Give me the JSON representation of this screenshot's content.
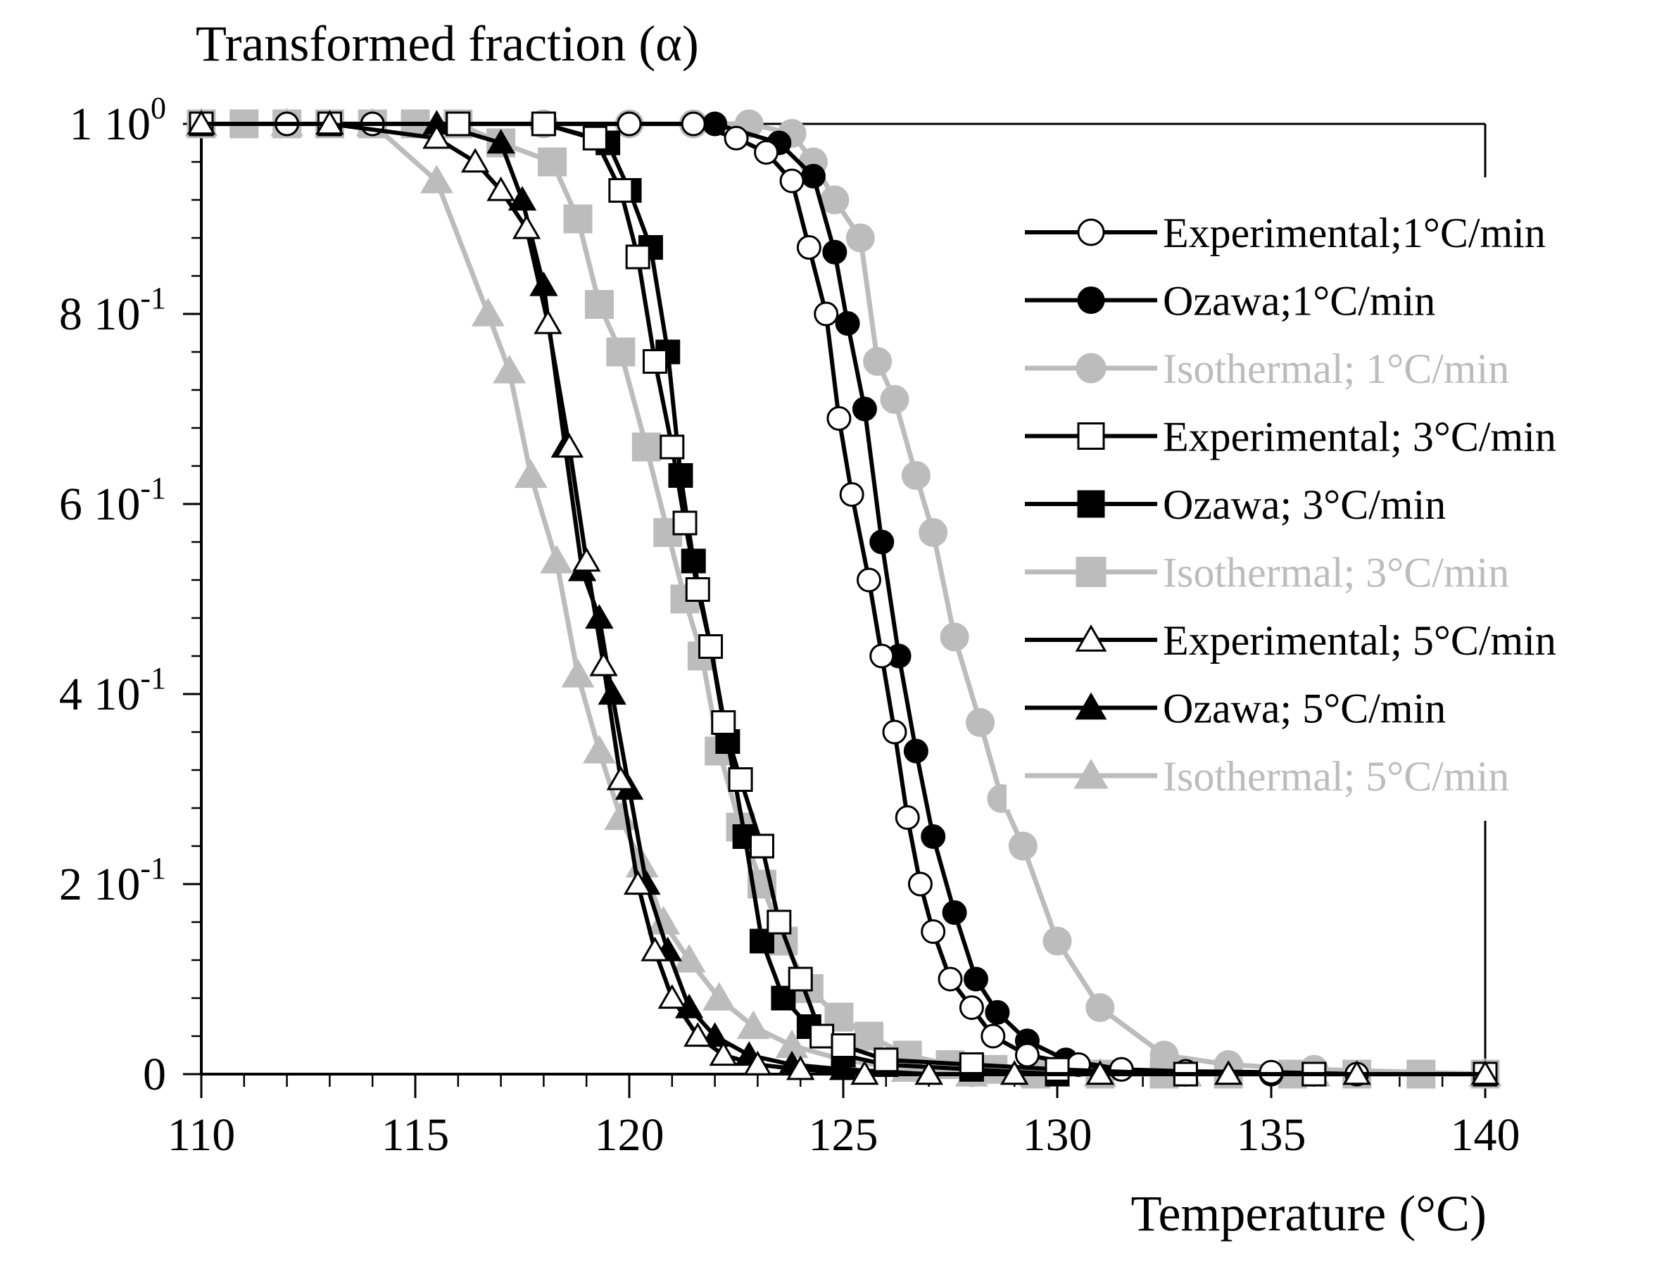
{
  "chart_data": {
    "type": "line",
    "ylabel": "Transformed fraction (α)",
    "xlabel": "Temperature (°C)",
    "xlim": [
      110,
      140
    ],
    "ylim": [
      0,
      1
    ],
    "x_ticks": [
      110,
      115,
      120,
      125,
      130,
      135,
      140
    ],
    "x_tick_labels": [
      "110",
      "115",
      "120",
      "125",
      "130",
      "135",
      "140"
    ],
    "y_ticks": [
      0,
      0.2,
      0.4,
      0.6,
      0.8,
      1.0
    ],
    "y_tick_labels": [
      {
        "main": "0",
        "exp": ""
      },
      {
        "main": "2 10",
        "exp": "-1"
      },
      {
        "main": "4 10",
        "exp": "-1"
      },
      {
        "main": "6 10",
        "exp": "-1"
      },
      {
        "main": "8 10",
        "exp": "-1"
      },
      {
        "main": "1 10",
        "exp": "0"
      }
    ],
    "grid": false,
    "legend_position": "right",
    "series": [
      {
        "name": "Experimental;1°C/min",
        "color": "#000000",
        "marker": "circle-open",
        "x": [
          110,
          112,
          114,
          116,
          118,
          120,
          121.5,
          122.5,
          123.2,
          123.8,
          124.2,
          124.6,
          124.9,
          125.2,
          125.6,
          125.9,
          126.2,
          126.5,
          126.8,
          127.1,
          127.5,
          128.0,
          128.5,
          129.3,
          130.5,
          131.5,
          133,
          135,
          137,
          140
        ],
        "y": [
          1.0,
          1.0,
          1.0,
          1.0,
          1.0,
          1.0,
          1.0,
          0.985,
          0.97,
          0.94,
          0.87,
          0.8,
          0.69,
          0.61,
          0.52,
          0.44,
          0.36,
          0.27,
          0.2,
          0.15,
          0.1,
          0.07,
          0.04,
          0.02,
          0.01,
          0.005,
          0.003,
          0.002,
          0.0,
          0.0
        ]
      },
      {
        "name": "Ozawa;1°C/min",
        "color": "#000000",
        "marker": "circle-filled",
        "x": [
          110,
          112,
          114,
          116,
          118,
          120,
          122,
          123.5,
          124.3,
          124.8,
          125.1,
          125.5,
          125.9,
          126.3,
          126.7,
          127.1,
          127.6,
          128.1,
          128.6,
          129.3,
          130.2,
          131.5,
          133,
          135,
          140
        ],
        "y": [
          1.0,
          1.0,
          1.0,
          1.0,
          1.0,
          1.0,
          1.0,
          0.98,
          0.945,
          0.865,
          0.79,
          0.7,
          0.56,
          0.44,
          0.34,
          0.25,
          0.17,
          0.1,
          0.065,
          0.035,
          0.015,
          0.005,
          0.002,
          0.0,
          0.0
        ]
      },
      {
        "name": "Isothermal; 1°C/min",
        "color": "#bcbcbc",
        "marker": "circle-filled",
        "x": [
          110,
          112,
          114,
          116,
          118,
          120,
          121.5,
          122.8,
          123.8,
          124.3,
          124.8,
          125.4,
          125.8,
          126.2,
          126.7,
          127.1,
          127.6,
          128.2,
          128.7,
          129.2,
          130,
          131,
          132.5,
          134,
          136,
          140
        ],
        "y": [
          1.0,
          1.0,
          1.0,
          1.0,
          1.0,
          1.0,
          1.0,
          1.0,
          0.99,
          0.96,
          0.92,
          0.88,
          0.75,
          0.71,
          0.63,
          0.57,
          0.46,
          0.37,
          0.29,
          0.24,
          0.14,
          0.07,
          0.02,
          0.01,
          0.005,
          0.0
        ]
      },
      {
        "name": "Experimental; 3°C/min",
        "color": "#000000",
        "marker": "square-open",
        "x": [
          110,
          113,
          116,
          118,
          119.2,
          119.8,
          120.2,
          120.6,
          121.0,
          121.3,
          121.6,
          121.9,
          122.2,
          122.6,
          123.1,
          123.5,
          124.0,
          124.5,
          125.0,
          126,
          128,
          130,
          133,
          136,
          140
        ],
        "y": [
          1.0,
          1.0,
          1.0,
          1.0,
          0.985,
          0.93,
          0.86,
          0.75,
          0.66,
          0.58,
          0.51,
          0.45,
          0.37,
          0.31,
          0.24,
          0.16,
          0.1,
          0.04,
          0.03,
          0.015,
          0.01,
          0.005,
          0.0,
          0.0,
          0.0
        ]
      },
      {
        "name": "Ozawa; 3°C/min",
        "color": "#000000",
        "marker": "square-filled",
        "x": [
          110,
          113,
          116,
          118,
          119.5,
          120.0,
          120.5,
          120.9,
          121.2,
          121.5,
          121.9,
          122.3,
          122.7,
          123.1,
          123.6,
          124.2,
          125,
          126,
          128,
          130,
          133,
          136,
          140
        ],
        "y": [
          1.0,
          1.0,
          1.0,
          1.0,
          0.98,
          0.93,
          0.87,
          0.76,
          0.63,
          0.54,
          0.45,
          0.35,
          0.25,
          0.14,
          0.08,
          0.05,
          0.02,
          0.01,
          0.005,
          0.0,
          0.0,
          0.0,
          0.0
        ]
      },
      {
        "name": "Isothermal; 3°C/min",
        "color": "#bcbcbc",
        "marker": "square-filled",
        "x": [
          110,
          111,
          112,
          113,
          114,
          115,
          116,
          117,
          118.2,
          118.8,
          119.3,
          119.8,
          120.4,
          120.9,
          121.3,
          121.7,
          122.1,
          122.6,
          123.1,
          123.6,
          124.2,
          124.9,
          125.6,
          126.5,
          127.5,
          128.5,
          129.5,
          131,
          132.5,
          134,
          135.5,
          137,
          138.5,
          140
        ],
        "y": [
          1.0,
          1.0,
          1.0,
          1.0,
          1.0,
          1.0,
          1.0,
          0.98,
          0.96,
          0.9,
          0.81,
          0.76,
          0.66,
          0.57,
          0.5,
          0.44,
          0.34,
          0.26,
          0.2,
          0.14,
          0.09,
          0.06,
          0.04,
          0.02,
          0.01,
          0.005,
          0.0,
          0.0,
          0.0,
          0.0,
          0.0,
          0.0,
          0.0,
          0.0
        ]
      },
      {
        "name": "Experimental; 5°C/min",
        "color": "#000000",
        "marker": "triangle-open",
        "x": [
          110,
          113,
          115.5,
          116.4,
          117.0,
          117.6,
          118.1,
          118.6,
          119.0,
          119.4,
          119.8,
          120.2,
          120.6,
          121.0,
          121.6,
          122.2,
          123.0,
          124.0,
          125.5,
          127,
          129,
          131,
          134,
          137,
          140
        ],
        "y": [
          1.0,
          1.0,
          0.985,
          0.96,
          0.93,
          0.89,
          0.79,
          0.66,
          0.54,
          0.43,
          0.31,
          0.2,
          0.13,
          0.08,
          0.04,
          0.02,
          0.01,
          0.005,
          0.0,
          0.0,
          0.0,
          0.0,
          0.0,
          0.0,
          0.0
        ]
      },
      {
        "name": "Ozawa; 5°C/min",
        "color": "#000000",
        "marker": "triangle-filled",
        "x": [
          110,
          113,
          115.5,
          117.0,
          117.5,
          118.0,
          118.5,
          118.9,
          119.3,
          119.6,
          120.0,
          120.4,
          120.9,
          121.4,
          122.0,
          122.8,
          123.8,
          125,
          127,
          129,
          131,
          134,
          137,
          140
        ],
        "y": [
          1.0,
          1.0,
          1.0,
          0.98,
          0.92,
          0.83,
          0.66,
          0.53,
          0.48,
          0.4,
          0.3,
          0.2,
          0.13,
          0.07,
          0.04,
          0.02,
          0.01,
          0.005,
          0.0,
          0.0,
          0.0,
          0.0,
          0.0,
          0.0
        ]
      },
      {
        "name": "Isothermal; 5°C/min",
        "color": "#bcbcbc",
        "marker": "triangle-filled",
        "x": [
          110,
          112,
          114,
          115.5,
          116.7,
          117.2,
          117.7,
          118.3,
          118.8,
          119.3,
          119.8,
          120.3,
          120.8,
          121.4,
          122.1,
          122.9,
          123.8,
          125,
          126.5,
          128,
          129.5,
          131,
          133,
          136,
          140
        ],
        "y": [
          1.0,
          1.0,
          1.0,
          0.94,
          0.8,
          0.74,
          0.63,
          0.54,
          0.42,
          0.34,
          0.27,
          0.22,
          0.16,
          0.12,
          0.08,
          0.05,
          0.03,
          0.015,
          0.005,
          0.0,
          0.0,
          0.0,
          0.0,
          0.0,
          0.0
        ]
      }
    ]
  }
}
